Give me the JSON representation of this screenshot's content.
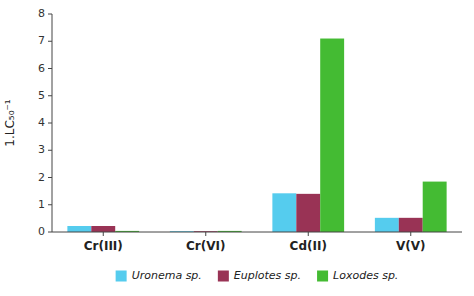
{
  "chart_data": {
    "type": "bar",
    "categories": [
      "Cr(III)",
      "Cr(VI)",
      "Cd(II)",
      "V(V)"
    ],
    "series": [
      {
        "name": "Uronema sp.",
        "color": "#55ccee",
        "values": [
          0.22,
          0.03,
          1.42,
          0.52
        ]
      },
      {
        "name": "Euplotes sp.",
        "color": "#993355",
        "values": [
          0.22,
          0.03,
          1.4,
          0.52
        ]
      },
      {
        "name": "Loxodes sp.",
        "color": "#44bb33",
        "values": [
          0.04,
          0.04,
          7.1,
          1.85
        ]
      }
    ],
    "y_label": "1.LC₅₀⁻¹",
    "ylim": [
      0,
      8
    ],
    "yticks": [
      0,
      1,
      2,
      3,
      4,
      5,
      6,
      7,
      8
    ],
    "grid": false,
    "legend": "bottom"
  }
}
